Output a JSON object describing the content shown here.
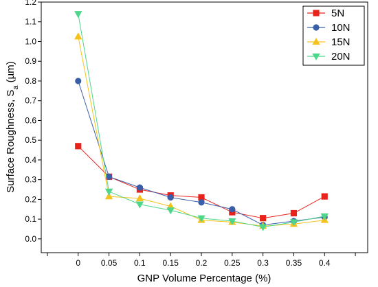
{
  "chart_data": {
    "type": "line",
    "xlabel": "GNP Volume Percentage (%)",
    "ylabel": {
      "main": "Surface Roughness, S",
      "sub": "a",
      "unit": " (µm)"
    },
    "x": [
      0,
      0.05,
      0.1,
      0.15,
      0.2,
      0.25,
      0.3,
      0.35,
      0.4
    ],
    "x_tick_labels": [
      "0",
      "0.05",
      "0.1",
      "0.15",
      "0.2",
      "0.25",
      "0.3",
      "0.35",
      "0.4"
    ],
    "y_tick_labels": [
      "0.0",
      "0.1",
      "0.2",
      "0.3",
      "0.4",
      "0.5",
      "0.6",
      "0.7",
      "0.8",
      "0.9",
      "1.0",
      "1.1",
      "1.2"
    ],
    "xlim": [
      -0.06,
      0.47
    ],
    "ylim": [
      -0.07,
      1.2
    ],
    "legend_position": "top-right",
    "series": [
      {
        "name": "5N",
        "color": "#e8231b",
        "marker": "square",
        "values": [
          0.47,
          0.315,
          0.25,
          0.22,
          0.21,
          0.135,
          0.105,
          0.13,
          0.215
        ]
      },
      {
        "name": "10N",
        "color": "#3a5ea8",
        "marker": "circle",
        "values": [
          0.8,
          0.315,
          0.26,
          0.21,
          0.185,
          0.15,
          0.07,
          0.09,
          0.11
        ]
      },
      {
        "name": "15N",
        "color": "#f5c21b",
        "marker": "triangle-up",
        "values": [
          1.025,
          0.215,
          0.205,
          0.165,
          0.095,
          0.085,
          0.065,
          0.075,
          0.095
        ]
      },
      {
        "name": "20N",
        "color": "#4fd68a",
        "marker": "triangle-down",
        "values": [
          1.14,
          0.24,
          0.175,
          0.145,
          0.105,
          0.09,
          0.06,
          0.085,
          0.115
        ]
      }
    ]
  }
}
